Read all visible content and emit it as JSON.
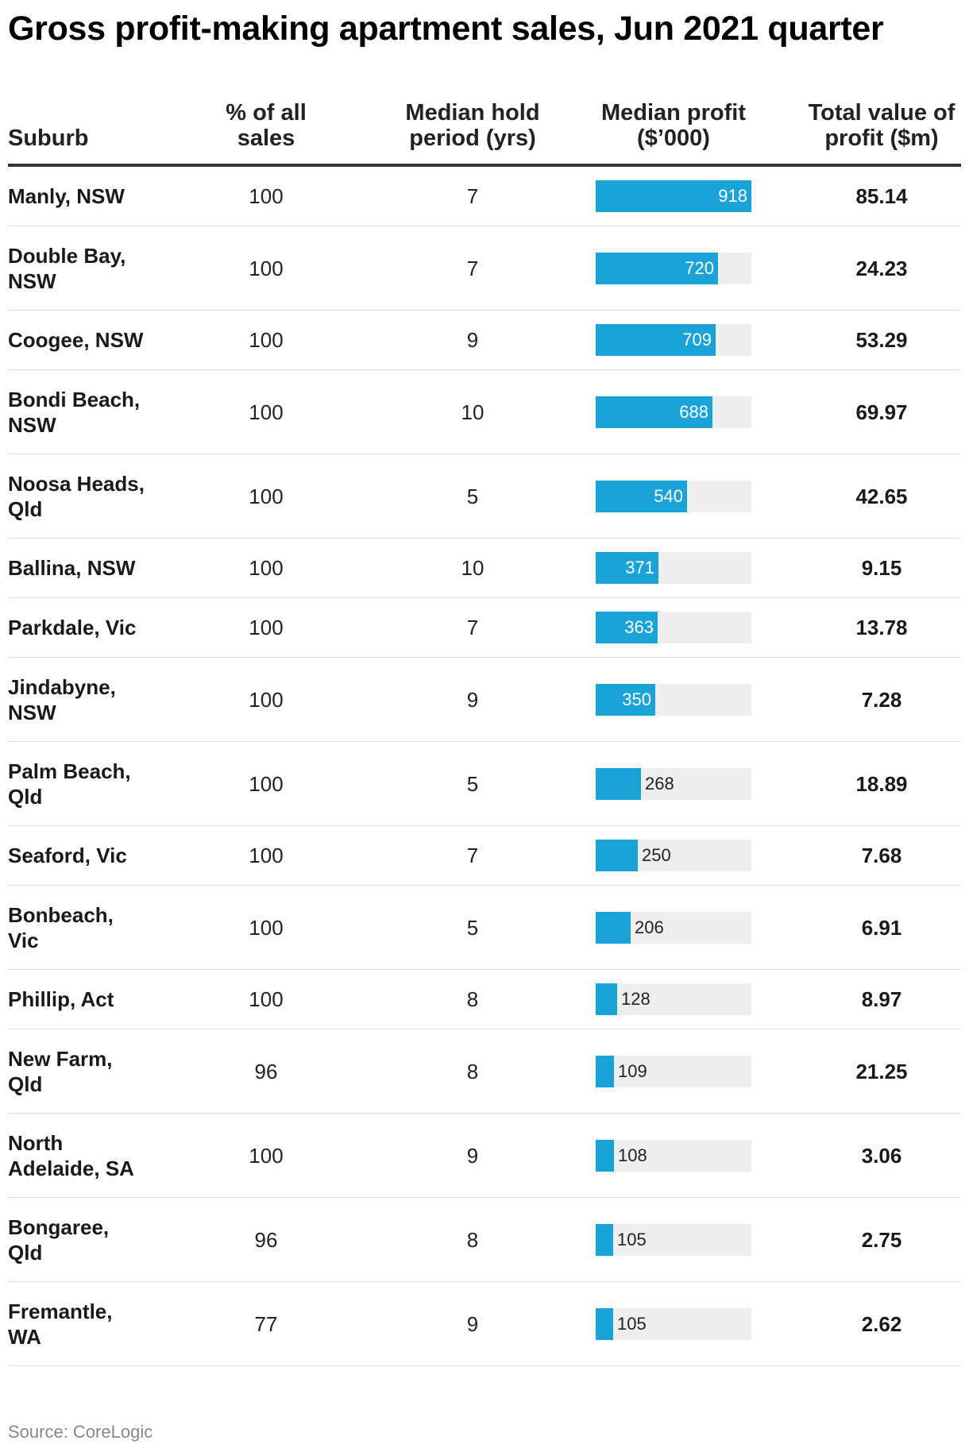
{
  "title": "Gross profit-making apartment sales, Jun 2021 quarter",
  "source": "Source: CoreLogic",
  "colors": {
    "bar": "#1aa3d6",
    "bar_track": "#eeeeee",
    "header_rule": "#333333",
    "row_rule": "#dddddd"
  },
  "columns": {
    "suburb": "Suburb",
    "pct_line1": "% of all",
    "pct_line2": "sales",
    "hold_line1": "Median hold",
    "hold_line2": "period (yrs)",
    "profit_line1": "Median profit",
    "profit_line2": "($’000)",
    "total_line1": "Total value of",
    "total_line2": "profit ($m)"
  },
  "chart_data": {
    "type": "table",
    "bar_column": "Median profit ($’000)",
    "bar_max": 918,
    "rows": [
      {
        "suburb": [
          "Manly, NSW"
        ],
        "pct": "100",
        "hold": "7",
        "profit": 918,
        "total": "85.14"
      },
      {
        "suburb": [
          "Double Bay,",
          "NSW"
        ],
        "pct": "100",
        "hold": "7",
        "profit": 720,
        "total": "24.23"
      },
      {
        "suburb": [
          "Coogee, NSW"
        ],
        "pct": "100",
        "hold": "9",
        "profit": 709,
        "total": "53.29"
      },
      {
        "suburb": [
          "Bondi Beach,",
          "NSW"
        ],
        "pct": "100",
        "hold": "10",
        "profit": 688,
        "total": "69.97"
      },
      {
        "suburb": [
          "Noosa Heads,",
          "Qld"
        ],
        "pct": "100",
        "hold": "5",
        "profit": 540,
        "total": "42.65"
      },
      {
        "suburb": [
          "Ballina, NSW"
        ],
        "pct": "100",
        "hold": "10",
        "profit": 371,
        "total": "9.15"
      },
      {
        "suburb": [
          "Parkdale, Vic"
        ],
        "pct": "100",
        "hold": "7",
        "profit": 363,
        "total": "13.78"
      },
      {
        "suburb": [
          "Jindabyne,",
          "NSW"
        ],
        "pct": "100",
        "hold": "9",
        "profit": 350,
        "total": "7.28"
      },
      {
        "suburb": [
          "Palm Beach,",
          "Qld"
        ],
        "pct": "100",
        "hold": "5",
        "profit": 268,
        "total": "18.89"
      },
      {
        "suburb": [
          "Seaford, Vic"
        ],
        "pct": "100",
        "hold": "7",
        "profit": 250,
        "total": "7.68"
      },
      {
        "suburb": [
          "Bonbeach,",
          "Vic"
        ],
        "pct": "100",
        "hold": "5",
        "profit": 206,
        "total": "6.91"
      },
      {
        "suburb": [
          "Phillip, Act"
        ],
        "pct": "100",
        "hold": "8",
        "profit": 128,
        "total": "8.97"
      },
      {
        "suburb": [
          "New Farm,",
          "Qld"
        ],
        "pct": "96",
        "hold": "8",
        "profit": 109,
        "total": "21.25"
      },
      {
        "suburb": [
          "North",
          "Adelaide, SA"
        ],
        "pct": "100",
        "hold": "9",
        "profit": 108,
        "total": "3.06"
      },
      {
        "suburb": [
          "Bongaree,",
          "Qld"
        ],
        "pct": "96",
        "hold": "8",
        "profit": 105,
        "total": "2.75"
      },
      {
        "suburb": [
          "Fremantle,",
          "WA"
        ],
        "pct": "77",
        "hold": "9",
        "profit": 105,
        "total": "2.62"
      }
    ]
  }
}
